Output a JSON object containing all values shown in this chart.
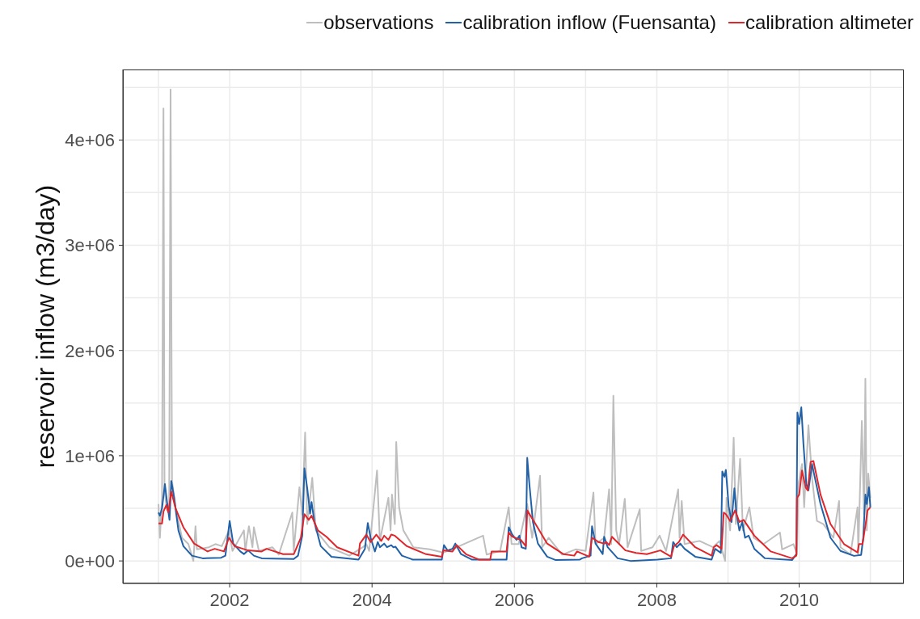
{
  "chart_data": {
    "type": "line",
    "ylabel": "reservoir inflow (m3/day)",
    "legend": "top right",
    "grid": true,
    "xlim": [
      2000.5,
      2011.47
    ],
    "xticks": [
      {
        "value": 2001,
        "label": null
      },
      2002,
      {
        "value": 2003,
        "label": null
      },
      2004,
      {
        "value": 2005,
        "label": null
      },
      2006,
      {
        "value": 2007,
        "label": null
      },
      2008,
      {
        "value": 2009,
        "label": null
      },
      2010,
      {
        "value": 2011,
        "label": null
      }
    ],
    "ylim": [
      -214000,
      4670000
    ],
    "yticks": [
      {
        "value": 0,
        "label": "0e+00"
      },
      {
        "value": 500000,
        "label": null
      },
      {
        "value": 1000000,
        "label": "1e+06"
      },
      {
        "value": 1500000,
        "label": null
      },
      {
        "value": 2000000,
        "label": "2e+06"
      },
      {
        "value": 2500000,
        "label": null
      },
      {
        "value": 3000000,
        "label": "3e+06"
      },
      {
        "value": 3500000,
        "label": null
      },
      {
        "value": 4000000,
        "label": "4e+06"
      },
      {
        "value": 4500000,
        "label": null
      }
    ],
    "series": [
      {
        "name": "observations",
        "color": "#bebebe",
        "x": [
          2001.0,
          2001.02,
          2001.05,
          2001.07,
          2001.085,
          2001.12,
          2001.15,
          2001.17,
          2001.19,
          2001.24,
          2001.33,
          2001.42,
          2001.49,
          2001.52,
          2001.54,
          2001.71,
          2001.8,
          2001.89,
          2001.99,
          2002.04,
          2002.2,
          2002.22,
          2002.27,
          2002.32,
          2002.34,
          2002.41,
          2002.6,
          2002.69,
          2002.88,
          2002.9,
          2002.98,
          2003.02,
          2003.06,
          2003.09,
          2003.16,
          2003.21,
          2003.4,
          2003.68,
          2003.87,
          2003.92,
          2003.96,
          2004.07,
          2004.11,
          2004.23,
          2004.26,
          2004.28,
          2004.32,
          2004.34,
          2004.38,
          2004.44,
          2004.58,
          2004.81,
          2005.0,
          2005.19,
          2005.56,
          2005.61,
          2005.8,
          2005.92,
          2005.96,
          2006.06,
          2006.18,
          2006.25,
          2006.36,
          2006.39,
          2006.48,
          2006.67,
          2006.86,
          2007.0,
          2007.11,
          2007.14,
          2007.26,
          2007.33,
          2007.36,
          2007.39,
          2007.43,
          2007.47,
          2007.55,
          2007.59,
          2007.76,
          2007.78,
          2007.94,
          2008.04,
          2008.13,
          2008.3,
          2008.32,
          2008.35,
          2008.39,
          2008.6,
          2008.79,
          2008.88,
          2008.96,
          2008.98,
          2009.03,
          2009.08,
          2009.11,
          2009.17,
          2009.21,
          2009.3,
          2009.36,
          2009.5,
          2009.73,
          2009.76,
          2009.92,
          2009.97,
          2009.99,
          2010.04,
          2010.07,
          2010.13,
          2010.18,
          2010.25,
          2010.34,
          2010.48,
          2010.56,
          2010.58,
          2010.72,
          2010.82,
          2010.83,
          2010.88,
          2010.91,
          2010.93,
          2010.95,
          2010.97,
          2011.0
        ],
        "values": [
          540000,
          220000,
          600000,
          4300000,
          670000,
          480000,
          510000,
          4480000,
          760000,
          510000,
          220000,
          160000,
          0,
          330000,
          110000,
          130000,
          160000,
          140000,
          290000,
          95000,
          290000,
          95000,
          330000,
          130000,
          320000,
          95000,
          130000,
          60000,
          460000,
          95000,
          700000,
          440000,
          1220000,
          350000,
          790000,
          290000,
          130000,
          50000,
          130000,
          160000,
          95000,
          860000,
          190000,
          600000,
          290000,
          630000,
          350000,
          1130000,
          510000,
          290000,
          130000,
          110000,
          80000,
          130000,
          240000,
          60000,
          95000,
          510000,
          160000,
          160000,
          540000,
          220000,
          810000,
          130000,
          220000,
          60000,
          110000,
          95000,
          650000,
          160000,
          220000,
          680000,
          160000,
          1570000,
          290000,
          160000,
          590000,
          130000,
          490000,
          95000,
          130000,
          240000,
          95000,
          680000,
          220000,
          570000,
          160000,
          190000,
          130000,
          190000,
          0,
          600000,
          290000,
          1170000,
          350000,
          970000,
          290000,
          510000,
          220000,
          160000,
          270000,
          110000,
          160000,
          60000,
          730000,
          920000,
          510000,
          1290000,
          790000,
          380000,
          350000,
          220000,
          570000,
          130000,
          60000,
          510000,
          60000,
          1330000,
          440000,
          1730000,
          290000,
          830000,
          600000
        ]
      },
      {
        "name": "calibration inflow (Fuensanta)",
        "color": "#2161a8",
        "x": [
          2001.0,
          2001.02,
          2001.05,
          2001.09,
          2001.12,
          2001.155,
          2001.18,
          2001.22,
          2001.28,
          2001.35,
          2001.47,
          2001.62,
          2001.88,
          2001.94,
          2002.0,
          2002.05,
          2002.15,
          2002.2,
          2002.26,
          2002.34,
          2002.45,
          2002.9,
          2002.96,
          2003.02,
          2003.05,
          2003.09,
          2003.13,
          2003.15,
          2003.19,
          2003.28,
          2003.43,
          2003.81,
          2003.9,
          2003.94,
          2003.98,
          2004.04,
          2004.08,
          2004.11,
          2004.17,
          2004.21,
          2004.27,
          2004.3,
          2004.33,
          2004.42,
          2004.57,
          2004.98,
          2005.01,
          2005.06,
          2005.13,
          2005.17,
          2005.25,
          2005.4,
          2005.89,
          2005.92,
          2005.97,
          2006.03,
          2006.07,
          2006.1,
          2006.16,
          2006.18,
          2006.21,
          2006.26,
          2006.33,
          2006.46,
          2006.58,
          2006.92,
          2006.95,
          2007.07,
          2007.09,
          2007.14,
          2007.24,
          2007.26,
          2007.31,
          2007.45,
          2007.63,
          2008.01,
          2008.2,
          2008.23,
          2008.28,
          2008.33,
          2008.39,
          2008.54,
          2008.77,
          2008.82,
          2008.9,
          2008.92,
          2008.95,
          2008.97,
          2009.01,
          2009.05,
          2009.09,
          2009.12,
          2009.16,
          2009.2,
          2009.24,
          2009.29,
          2009.37,
          2009.52,
          2009.9,
          2009.96,
          2009.975,
          2010.0,
          2010.03,
          2010.06,
          2010.1,
          2010.13,
          2010.18,
          2010.23,
          2010.3,
          2010.44,
          2010.58,
          2010.77,
          2010.87,
          2010.9,
          2010.93,
          2010.95,
          2010.98,
          2011.0
        ],
        "values": [
          460000,
          430000,
          500000,
          730000,
          560000,
          390000,
          760000,
          600000,
          290000,
          140000,
          50000,
          25000,
          30000,
          50000,
          380000,
          165000,
          90000,
          65000,
          100000,
          50000,
          25000,
          18000,
          50000,
          240000,
          880000,
          690000,
          450000,
          560000,
          370000,
          140000,
          40000,
          13000,
          115000,
          360000,
          220000,
          90000,
          180000,
          130000,
          165000,
          130000,
          150000,
          130000,
          135000,
          50000,
          13000,
          13000,
          150000,
          100000,
          115000,
          165000,
          65000,
          13000,
          13000,
          320000,
          250000,
          200000,
          240000,
          130000,
          115000,
          980000,
          730000,
          370000,
          165000,
          40000,
          8000,
          13000,
          25000,
          50000,
          330000,
          165000,
          65000,
          230000,
          130000,
          25000,
          0,
          13000,
          25000,
          180000,
          130000,
          165000,
          115000,
          40000,
          13000,
          115000,
          76000,
          850000,
          800000,
          865000,
          520000,
          370000,
          690000,
          445000,
          290000,
          370000,
          220000,
          240000,
          115000,
          25000,
          8000,
          65000,
          1410000,
          1300000,
          1460000,
          1110000,
          730000,
          670000,
          920000,
          760000,
          540000,
          220000,
          95000,
          48000,
          57000,
          220000,
          630000,
          540000,
          700000,
          510000
        ]
      },
      {
        "name": "calibration altimeter",
        "color": "#e0262b",
        "x": [
          2001.0,
          2001.05,
          2001.07,
          2001.11,
          2001.14,
          2001.18,
          2001.24,
          2001.35,
          2001.5,
          2001.69,
          2001.79,
          2001.92,
          2001.99,
          2002.07,
          2002.26,
          2002.45,
          2002.52,
          2002.75,
          2002.9,
          2003.0,
          2003.05,
          2003.11,
          2003.15,
          2003.24,
          2003.36,
          2003.51,
          2003.81,
          2003.83,
          2003.92,
          2003.98,
          2004.06,
          2004.13,
          2004.17,
          2004.23,
          2004.27,
          2004.32,
          2004.49,
          2004.76,
          2004.98,
          2005.0,
          2005.13,
          2005.19,
          2005.32,
          2005.5,
          2005.66,
          2005.68,
          2005.89,
          2005.92,
          2005.97,
          2006.09,
          2006.16,
          2006.18,
          2006.28,
          2006.46,
          2006.69,
          2006.84,
          2006.88,
          2007.05,
          2007.09,
          2007.18,
          2007.26,
          2007.29,
          2007.33,
          2007.37,
          2007.56,
          2007.71,
          2007.86,
          2008.05,
          2008.2,
          2008.24,
          2008.31,
          2008.37,
          2008.54,
          2008.77,
          2008.8,
          2008.84,
          2008.91,
          2008.94,
          2008.97,
          2009.03,
          2009.1,
          2009.16,
          2009.22,
          2009.37,
          2009.6,
          2009.9,
          2009.96,
          2009.97,
          2010.0,
          2010.04,
          2010.09,
          2010.12,
          2010.16,
          2010.2,
          2010.3,
          2010.44,
          2010.63,
          2010.82,
          2010.84,
          2010.89,
          2010.94,
          2010.96,
          2011.0
        ],
        "values": [
          356000,
          356000,
          470000,
          530000,
          460000,
          660000,
          500000,
          320000,
          165000,
          90000,
          115000,
          90000,
          220000,
          140000,
          100000,
          90000,
          115000,
          64000,
          64000,
          220000,
          445000,
          390000,
          430000,
          290000,
          230000,
          130000,
          50000,
          165000,
          250000,
          180000,
          250000,
          190000,
          240000,
          200000,
          250000,
          240000,
          140000,
          64000,
          40000,
          100000,
          90000,
          150000,
          64000,
          13000,
          13000,
          90000,
          90000,
          270000,
          230000,
          200000,
          140000,
          480000,
          370000,
          165000,
          64000,
          50000,
          90000,
          40000,
          220000,
          180000,
          165000,
          180000,
          150000,
          230000,
          100000,
          76000,
          64000,
          100000,
          40000,
          140000,
          180000,
          250000,
          130000,
          50000,
          130000,
          150000,
          115000,
          460000,
          445000,
          380000,
          480000,
          370000,
          390000,
          240000,
          90000,
          25000,
          50000,
          600000,
          630000,
          860000,
          700000,
          670000,
          940000,
          950000,
          630000,
          350000,
          160000,
          80000,
          160000,
          160000,
          380000,
          480000,
          510000
        ]
      }
    ]
  }
}
